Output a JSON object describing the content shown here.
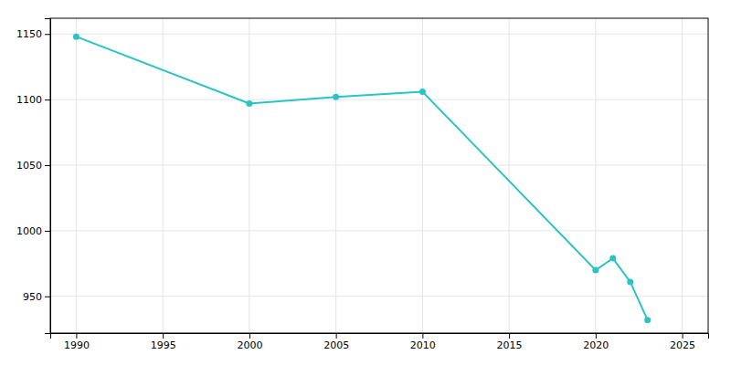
{
  "chart_data": {
    "type": "line",
    "x": [
      1990,
      2000,
      2005,
      2010,
      2020,
      2021,
      2022,
      2023
    ],
    "values": [
      1148,
      1097,
      1102,
      1106,
      970,
      979,
      961,
      932
    ],
    "color": "#2ac4c4",
    "marker": "circle",
    "xlim": [
      1988.5,
      2026.5
    ],
    "ylim": [
      922,
      1162
    ],
    "xticks": [
      1990,
      1995,
      2000,
      2005,
      2010,
      2015,
      2020,
      2025
    ],
    "yticks": [
      950,
      1000,
      1050,
      1100,
      1150
    ],
    "grid": true
  }
}
